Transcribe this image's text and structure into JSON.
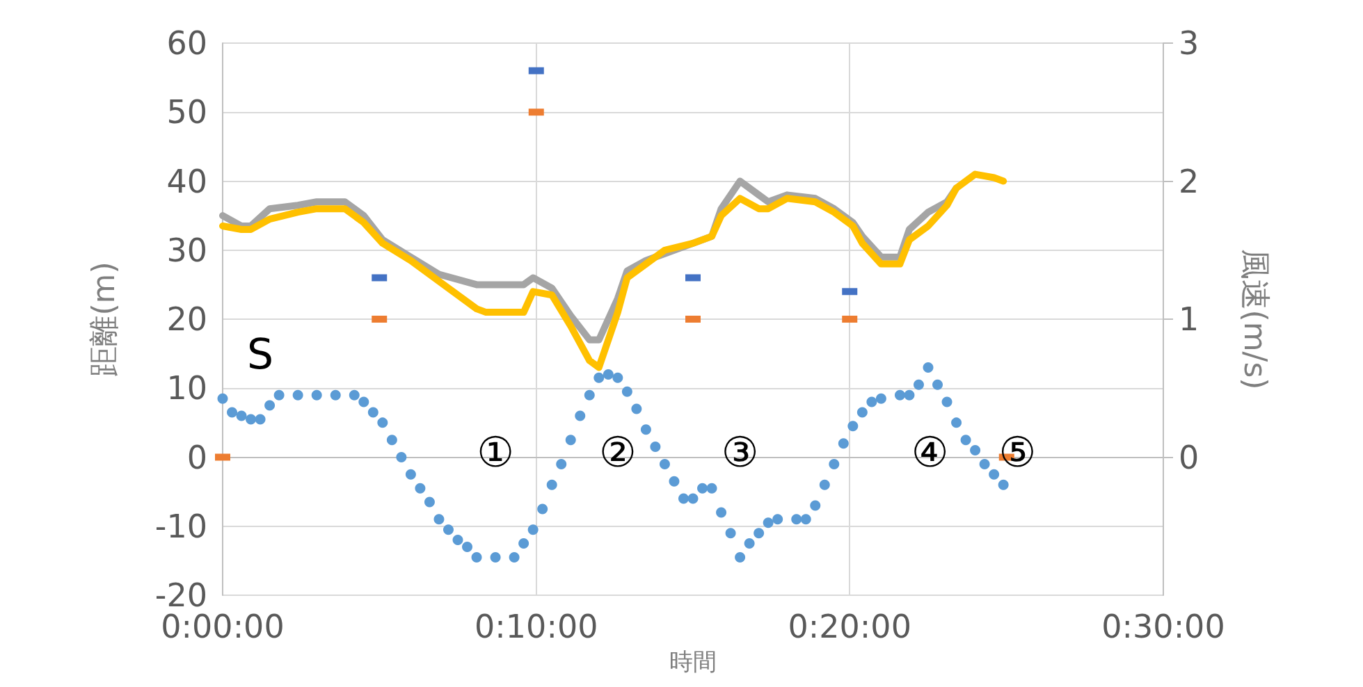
{
  "chart_data": {
    "type": "line",
    "xlabel": "時間",
    "ylabel": "距離(m)",
    "y2label": "風速(m/s)",
    "xlim": [
      0,
      0.5
    ],
    "xticks": [
      {
        "value": 0,
        "label": "0:00:00"
      },
      {
        "value": 0.1667,
        "label": "0:10:00"
      },
      {
        "value": 0.3333,
        "label": "0:20:00"
      },
      {
        "value": 0.5,
        "label": "0:30:00"
      }
    ],
    "ylim": [
      -20,
      60
    ],
    "yticks": [
      -20,
      -10,
      0,
      10,
      20,
      30,
      40,
      50,
      60
    ],
    "y2lim": [
      -1,
      3
    ],
    "y2ticks": [
      0,
      1,
      2,
      3
    ],
    "grid": true,
    "series": [
      {
        "color": "#a5a5a5",
        "marker": "none",
        "x": [
          0,
          0.01,
          0.015,
          0.025,
          0.04,
          0.05,
          0.065,
          0.075,
          0.085,
          0.1,
          0.115,
          0.135,
          0.14,
          0.16,
          0.165,
          0.175,
          0.185,
          0.195,
          0.2,
          0.21,
          0.215,
          0.225,
          0.235,
          0.25,
          0.26,
          0.265,
          0.275,
          0.285,
          0.29,
          0.3,
          0.315,
          0.325,
          0.335,
          0.34,
          0.35,
          0.36,
          0.365,
          0.375,
          0.385,
          0.39
        ],
        "values": [
          35,
          33.5,
          33.5,
          36,
          36.5,
          37,
          37,
          35,
          31.5,
          29,
          26.5,
          25,
          25,
          25,
          26,
          24.5,
          20.5,
          17,
          17,
          23,
          27,
          28.5,
          29.5,
          31,
          32,
          36,
          40,
          38,
          37,
          38,
          37.5,
          36,
          34,
          32,
          29,
          29,
          33,
          35.5,
          37,
          39
        ]
      },
      {
        "color": "#ffc000",
        "marker": "none",
        "x": [
          0,
          0.01,
          0.015,
          0.025,
          0.04,
          0.05,
          0.065,
          0.075,
          0.085,
          0.1,
          0.115,
          0.135,
          0.14,
          0.16,
          0.165,
          0.175,
          0.185,
          0.195,
          0.2,
          0.21,
          0.215,
          0.225,
          0.235,
          0.25,
          0.26,
          0.265,
          0.275,
          0.285,
          0.29,
          0.3,
          0.315,
          0.325,
          0.335,
          0.34,
          0.35,
          0.36,
          0.365,
          0.375,
          0.385,
          0.39,
          0.4,
          0.41,
          0.415
        ],
        "values": [
          33.5,
          33,
          33,
          34.5,
          35.5,
          36,
          36,
          34,
          31,
          28.5,
          25.5,
          21.5,
          21,
          21,
          24,
          23.5,
          19,
          14,
          13,
          21,
          26,
          28,
          30,
          31,
          32,
          35,
          37.5,
          36,
          36,
          37.5,
          37,
          35.5,
          33.5,
          31,
          28,
          28,
          31.5,
          33.5,
          36.5,
          39,
          41,
          40.5,
          40
        ]
      },
      {
        "type": "scatter",
        "color": "#5b9bd5",
        "marker": "circle",
        "x": [
          0,
          0.005,
          0.01,
          0.015,
          0.02,
          0.025,
          0.03,
          0.04,
          0.05,
          0.06,
          0.07,
          0.075,
          0.08,
          0.085,
          0.09,
          0.095,
          0.1,
          0.105,
          0.11,
          0.115,
          0.12,
          0.125,
          0.13,
          0.135,
          0.145,
          0.155,
          0.16,
          0.165,
          0.17,
          0.175,
          0.18,
          0.185,
          0.19,
          0.195,
          0.2,
          0.205,
          0.21,
          0.215,
          0.22,
          0.225,
          0.23,
          0.235,
          0.24,
          0.245,
          0.25,
          0.255,
          0.26,
          0.265,
          0.27,
          0.275,
          0.28,
          0.285,
          0.29,
          0.295,
          0.305,
          0.31,
          0.315,
          0.32,
          0.325,
          0.33,
          0.335,
          0.34,
          0.345,
          0.35,
          0.36,
          0.365,
          0.37,
          0.375,
          0.38,
          0.385,
          0.39,
          0.395,
          0.4,
          0.405,
          0.41,
          0.415
        ],
        "values": [
          8.5,
          6.5,
          6,
          5.5,
          5.5,
          7.5,
          9,
          9,
          9,
          9,
          9,
          8,
          6.5,
          5,
          2.5,
          0,
          -2.5,
          -4.5,
          -6.5,
          -9,
          -10.5,
          -12,
          -13,
          -14.5,
          -14.5,
          -14.5,
          -12.5,
          -10.5,
          -7.5,
          -4,
          -1,
          2.5,
          6,
          9,
          11.5,
          12,
          11.5,
          9.5,
          7,
          4,
          1.5,
          -1,
          -3.5,
          -6,
          -6,
          -4.5,
          -4.5,
          -8,
          -11,
          -14.5,
          -12.5,
          -11,
          -9.5,
          -9,
          -9,
          -9,
          -7,
          -4,
          -1,
          2,
          4.5,
          6.5,
          8,
          8.5,
          9,
          9,
          10.5,
          13,
          10.5,
          8,
          5,
          2.5,
          1,
          -1,
          -2.5,
          -4
        ]
      },
      {
        "type": "scatter",
        "color": "#4472c4",
        "marker": "square",
        "axis": "y2",
        "x": [
          0.0833,
          0.1667,
          0.25,
          0.3333
        ],
        "values": [
          1.3,
          2.8,
          1.3,
          1.2
        ]
      },
      {
        "type": "scatter",
        "color": "#ed7d31",
        "marker": "square",
        "axis": "y2",
        "x": [
          0,
          0.0833,
          0.1667,
          0.25,
          0.3333,
          0.4167
        ],
        "values": [
          0,
          1,
          2.5,
          1,
          1,
          0
        ]
      }
    ],
    "annotations": [
      "S",
      "①",
      "②",
      "③",
      "④",
      "⑤"
    ]
  }
}
